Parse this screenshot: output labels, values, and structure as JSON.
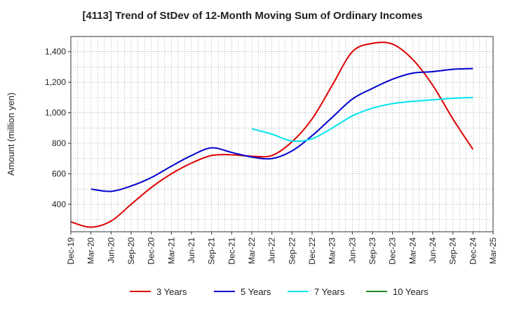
{
  "chart_data": {
    "type": "line",
    "title": "[4113]  Trend of StDev of 12-Month Moving Sum of Ordinary Incomes",
    "xlabel": "",
    "ylabel": "Amount (million yen)",
    "ylim": [
      220,
      1500
    ],
    "yticks": [
      400,
      600,
      800,
      1000,
      1200,
      1400
    ],
    "grid": true,
    "legend": "bottom",
    "x": [
      "Dec-19",
      "Mar-20",
      "Jun-20",
      "Sep-20",
      "Dec-20",
      "Mar-21",
      "Jun-21",
      "Sep-21",
      "Dec-21",
      "Mar-22",
      "Jun-22",
      "Sep-22",
      "Dec-22",
      "Mar-23",
      "Jun-23",
      "Sep-23",
      "Dec-23",
      "Mar-24",
      "Jun-24",
      "Sep-24",
      "Dec-24",
      "Mar-25"
    ],
    "series": [
      {
        "name": "3 Years",
        "color": "#dd0000",
        "values": [
          285,
          250,
          290,
          400,
          510,
          600,
          670,
          720,
          725,
          715,
          720,
          810,
          960,
          1180,
          1400,
          1455,
          1450,
          1350,
          1180,
          960,
          760,
          null
        ]
      },
      {
        "name": "5 Years",
        "color": "#0000cc",
        "values": [
          null,
          500,
          485,
          520,
          575,
          650,
          720,
          770,
          740,
          710,
          700,
          750,
          850,
          970,
          1090,
          1160,
          1220,
          1260,
          1270,
          1285,
          1290,
          null
        ]
      },
      {
        "name": "7 Years",
        "color": "#00e5ee",
        "values": [
          null,
          null,
          null,
          null,
          null,
          null,
          null,
          null,
          null,
          895,
          860,
          815,
          830,
          900,
          980,
          1030,
          1060,
          1075,
          1085,
          1095,
          1100,
          null
        ]
      },
      {
        "name": "10 Years",
        "color": "#228b22",
        "values": [
          null,
          null,
          null,
          null,
          null,
          null,
          null,
          null,
          null,
          null,
          null,
          null,
          null,
          null,
          null,
          null,
          null,
          null,
          null,
          null,
          null,
          null
        ]
      }
    ]
  }
}
